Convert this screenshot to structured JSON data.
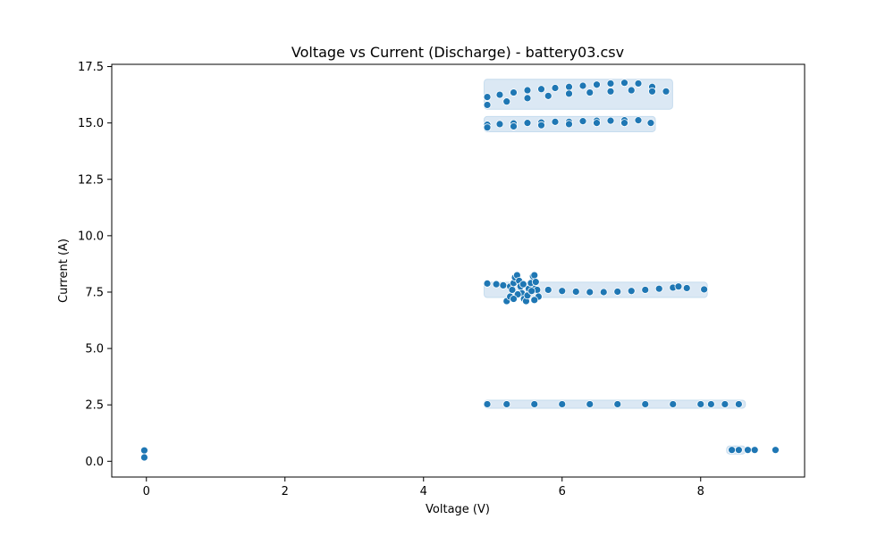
{
  "chart_data": {
    "type": "scatter",
    "title": "Voltage vs Current (Discharge) - battery03.csv",
    "xlabel": "Voltage (V)",
    "ylabel": "Current (A)",
    "xlim": [
      -0.5,
      9.5
    ],
    "ylim": [
      -0.7,
      17.6
    ],
    "xticks": [
      0,
      2,
      4,
      6,
      8
    ],
    "xtick_labels": [
      "0",
      "2",
      "4",
      "6",
      "8"
    ],
    "yticks": [
      0.0,
      2.5,
      5.0,
      7.5,
      10.0,
      12.5,
      15.0,
      17.5
    ],
    "ytick_labels": [
      "0.0",
      "2.5",
      "5.0",
      "7.5",
      "10.0",
      "12.5",
      "15.0",
      "17.5"
    ],
    "grid": false,
    "marker_color": "#1f77b4",
    "marker_edge_color": "#ffffff",
    "series": [
      {
        "points": [
          [
            -0.03,
            0.48
          ],
          [
            -0.03,
            0.17
          ],
          [
            4.92,
            16.15
          ],
          [
            5.1,
            16.25
          ],
          [
            5.3,
            16.35
          ],
          [
            5.5,
            16.45
          ],
          [
            5.7,
            16.5
          ],
          [
            5.9,
            16.55
          ],
          [
            6.1,
            16.6
          ],
          [
            6.3,
            16.65
          ],
          [
            6.5,
            16.7
          ],
          [
            6.7,
            16.75
          ],
          [
            6.9,
            16.78
          ],
          [
            7.1,
            16.75
          ],
          [
            7.3,
            16.6
          ],
          [
            7.5,
            16.4
          ],
          [
            4.92,
            15.8
          ],
          [
            5.2,
            15.95
          ],
          [
            5.5,
            16.1
          ],
          [
            5.8,
            16.2
          ],
          [
            6.1,
            16.3
          ],
          [
            6.4,
            16.35
          ],
          [
            6.7,
            16.4
          ],
          [
            7.0,
            16.45
          ],
          [
            7.3,
            16.4
          ],
          [
            4.92,
            14.92
          ],
          [
            5.1,
            14.95
          ],
          [
            5.3,
            14.98
          ],
          [
            5.5,
            15.0
          ],
          [
            5.7,
            15.02
          ],
          [
            5.9,
            15.05
          ],
          [
            6.1,
            15.05
          ],
          [
            6.3,
            15.08
          ],
          [
            6.5,
            15.1
          ],
          [
            6.7,
            15.1
          ],
          [
            6.9,
            15.12
          ],
          [
            7.1,
            15.12
          ],
          [
            7.28,
            15.0
          ],
          [
            4.92,
            14.8
          ],
          [
            5.3,
            14.85
          ],
          [
            5.7,
            14.9
          ],
          [
            6.1,
            14.95
          ],
          [
            6.5,
            15.0
          ],
          [
            6.9,
            15.0
          ],
          [
            4.92,
            7.88
          ],
          [
            5.05,
            7.85
          ],
          [
            5.15,
            7.8
          ],
          [
            5.25,
            7.75
          ],
          [
            5.4,
            7.7
          ],
          [
            5.6,
            7.65
          ],
          [
            5.8,
            7.6
          ],
          [
            6.0,
            7.55
          ],
          [
            6.2,
            7.52
          ],
          [
            6.4,
            7.5
          ],
          [
            6.6,
            7.5
          ],
          [
            6.8,
            7.52
          ],
          [
            7.0,
            7.55
          ],
          [
            7.2,
            7.6
          ],
          [
            7.4,
            7.65
          ],
          [
            7.6,
            7.7
          ],
          [
            7.68,
            7.75
          ],
          [
            7.8,
            7.68
          ],
          [
            8.05,
            7.62
          ],
          [
            5.2,
            7.1
          ],
          [
            5.25,
            7.3
          ],
          [
            5.28,
            7.6
          ],
          [
            5.3,
            7.9
          ],
          [
            5.32,
            8.15
          ],
          [
            5.35,
            8.25
          ],
          [
            5.38,
            8.0
          ],
          [
            5.4,
            7.75
          ],
          [
            5.42,
            7.45
          ],
          [
            5.45,
            7.2
          ],
          [
            5.48,
            7.1
          ],
          [
            5.5,
            7.35
          ],
          [
            5.52,
            7.65
          ],
          [
            5.55,
            7.9
          ],
          [
            5.58,
            8.2
          ],
          [
            5.6,
            8.25
          ],
          [
            5.62,
            7.95
          ],
          [
            5.64,
            7.6
          ],
          [
            5.66,
            7.3
          ],
          [
            5.6,
            7.15
          ],
          [
            5.36,
            7.4
          ],
          [
            5.44,
            7.85
          ],
          [
            5.56,
            7.55
          ],
          [
            5.3,
            7.2
          ],
          [
            4.92,
            2.53
          ],
          [
            5.2,
            2.53
          ],
          [
            5.6,
            2.53
          ],
          [
            6.0,
            2.53
          ],
          [
            6.4,
            2.53
          ],
          [
            6.8,
            2.53
          ],
          [
            7.2,
            2.53
          ],
          [
            7.6,
            2.53
          ],
          [
            8.0,
            2.53
          ],
          [
            8.15,
            2.53
          ],
          [
            8.35,
            2.53
          ],
          [
            8.55,
            2.53
          ],
          [
            8.45,
            0.5
          ],
          [
            8.55,
            0.5
          ],
          [
            8.68,
            0.5
          ],
          [
            8.78,
            0.5
          ],
          [
            9.08,
            0.5
          ]
        ],
        "bands": [
          {
            "x_from": 4.92,
            "x_to": 7.55,
            "y_from": 15.75,
            "y_to": 16.8
          },
          {
            "x_from": 4.92,
            "x_to": 7.3,
            "y_from": 14.75,
            "y_to": 15.15
          },
          {
            "x_from": 4.92,
            "x_to": 8.05,
            "y_from": 7.4,
            "y_to": 7.8
          },
          {
            "x_from": 4.92,
            "x_to": 8.6,
            "y_from": 2.49,
            "y_to": 2.57
          },
          {
            "x_from": 8.42,
            "x_to": 8.6,
            "y_from": 0.46,
            "y_to": 0.54
          }
        ]
      }
    ]
  }
}
